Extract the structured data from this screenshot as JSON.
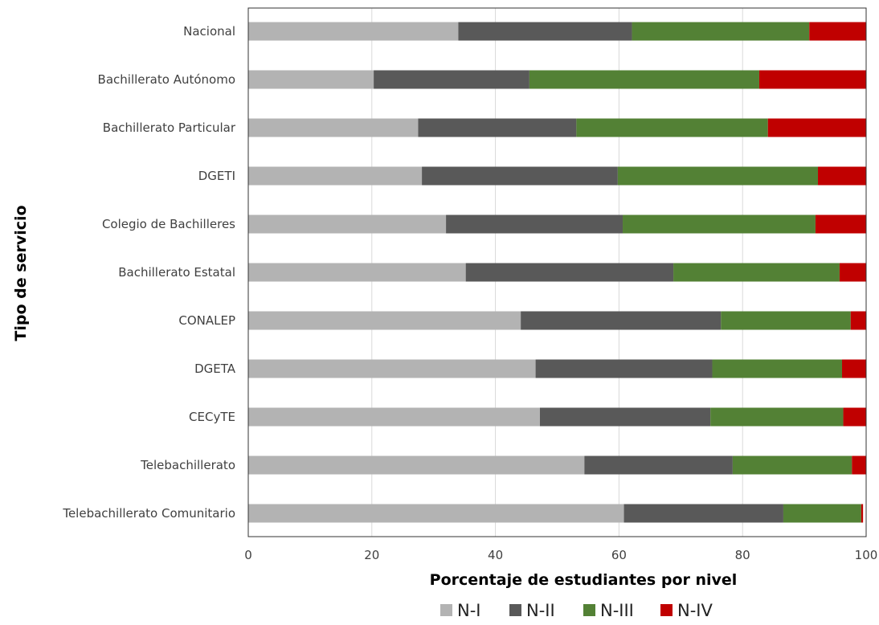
{
  "chart_data": {
    "type": "bar",
    "orientation": "horizontal",
    "stacked": true,
    "title": "",
    "xlabel": "Porcentaje de estudiantes por nivel",
    "ylabel": "Tipo de servicio",
    "xlim": [
      0,
      100
    ],
    "xticks": [
      0,
      20,
      40,
      60,
      80,
      100
    ],
    "grid": "vertical",
    "legend_position": "bottom",
    "categories": [
      "Nacional",
      "Bachillerato Autónomo",
      "Bachillerato Particular",
      "DGETI",
      "Colegio de Bachilleres",
      "Bachillerato Estatal",
      "CONALEP",
      "DGETA",
      "CECyTE",
      "Telebachillerato",
      "Telebachillerato Comunitario"
    ],
    "series": [
      {
        "name": "N-I",
        "color": "#b3b3b3",
        "values": [
          34,
          20.3,
          27.5,
          28.1,
          32,
          35.2,
          44.1,
          46.5,
          47.2,
          54.4,
          60.8
        ]
      },
      {
        "name": "N-II",
        "color": "#595959",
        "values": [
          28.1,
          25.2,
          25.6,
          31.7,
          28.6,
          33.6,
          32.4,
          28.6,
          27.6,
          24,
          25.8
        ]
      },
      {
        "name": "N-III",
        "color": "#538135",
        "values": [
          28.7,
          37.2,
          31,
          32.4,
          31.2,
          26.9,
          21,
          21,
          21.5,
          19.3,
          12.6
        ]
      },
      {
        "name": "N-IV",
        "color": "#c00000",
        "values": [
          9.2,
          17.3,
          15.9,
          7.8,
          8.2,
          4.3,
          2.5,
          3.9,
          3.7,
          2.3,
          0.3
        ]
      }
    ]
  }
}
